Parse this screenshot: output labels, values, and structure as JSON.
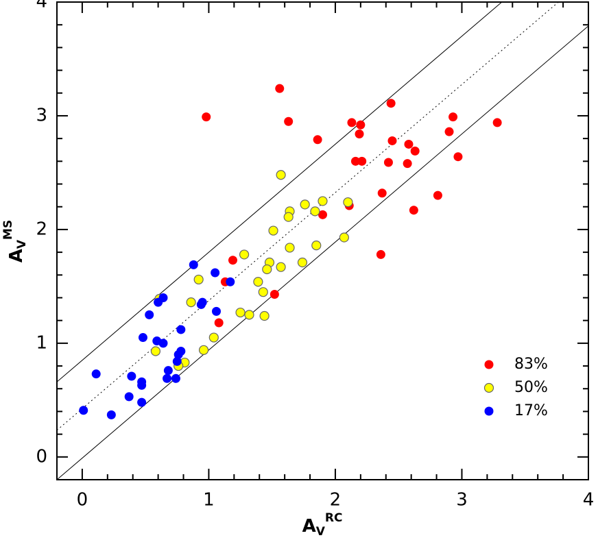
{
  "chart_data": {
    "type": "scatter",
    "x_label": {
      "main": "A",
      "sub": "V",
      "sup": "RC"
    },
    "y_label": {
      "main": "A",
      "sub": "V",
      "sup": "MS"
    },
    "xlim": [
      -0.2,
      4
    ],
    "ylim": [
      -0.2,
      4
    ],
    "xticks": [
      0,
      1,
      2,
      3,
      4
    ],
    "yticks": [
      0,
      1,
      2,
      3,
      4
    ],
    "legend": "lower right",
    "lines": [
      {
        "slope": 0.95,
        "intercept": 0.85,
        "style": "solid"
      },
      {
        "slope": 0.95,
        "intercept": 0.425,
        "style": "dotted"
      },
      {
        "slope": 0.95,
        "intercept": -0.01,
        "style": "solid"
      }
    ],
    "series": [
      {
        "name": "83%",
        "color": "#ff0000",
        "x": [
          1.56,
          0.98,
          1.63,
          1.86,
          2.13,
          2.2,
          2.44,
          2.19,
          2.45,
          2.58,
          2.63,
          2.9,
          2.93,
          3.28,
          2.97,
          2.16,
          2.21,
          2.42,
          2.57,
          2.37,
          2.62,
          2.81,
          1.9,
          2.11,
          2.36,
          1.19,
          1.13,
          1.52,
          1.08
        ],
        "values": [
          3.24,
          2.99,
          2.95,
          2.79,
          2.94,
          2.92,
          3.11,
          2.84,
          2.78,
          2.75,
          2.69,
          2.86,
          2.99,
          2.94,
          2.64,
          2.6,
          2.6,
          2.59,
          2.58,
          2.32,
          2.17,
          2.3,
          2.13,
          2.21,
          1.78,
          1.73,
          1.54,
          1.43,
          1.18
        ]
      },
      {
        "name": "50%",
        "color": "#ffff00",
        "x": [
          1.57,
          1.64,
          1.63,
          1.76,
          1.84,
          1.9,
          2.1,
          1.51,
          1.64,
          1.85,
          2.07,
          1.28,
          1.48,
          1.57,
          1.74,
          1.46,
          1.39,
          1.43,
          0.92,
          0.86,
          1.25,
          1.32,
          1.44,
          1.04,
          0.96,
          0.61,
          0.58,
          0.81,
          0.76
        ],
        "values": [
          2.48,
          2.16,
          2.11,
          2.22,
          2.16,
          2.25,
          2.24,
          1.99,
          1.84,
          1.86,
          1.93,
          1.78,
          1.71,
          1.67,
          1.71,
          1.65,
          1.54,
          1.45,
          1.56,
          1.36,
          1.27,
          1.25,
          1.24,
          1.05,
          0.94,
          1.39,
          0.93,
          0.83,
          0.8
        ]
      },
      {
        "name": "17%",
        "color": "#0000ff",
        "x": [
          0.88,
          1.05,
          1.17,
          0.64,
          0.6,
          0.94,
          0.95,
          1.06,
          0.53,
          0.78,
          0.48,
          0.59,
          0.64,
          0.78,
          0.76,
          0.75,
          0.68,
          0.67,
          0.74,
          0.11,
          0.39,
          0.47,
          0.47,
          0.37,
          0.47,
          0.01,
          0.23
        ],
        "values": [
          1.69,
          1.62,
          1.54,
          1.4,
          1.36,
          1.34,
          1.36,
          1.28,
          1.25,
          1.12,
          1.05,
          1.02,
          1.0,
          0.93,
          0.9,
          0.84,
          0.76,
          0.69,
          0.69,
          0.73,
          0.71,
          0.66,
          0.63,
          0.53,
          0.48,
          0.41,
          0.37
        ]
      }
    ]
  }
}
